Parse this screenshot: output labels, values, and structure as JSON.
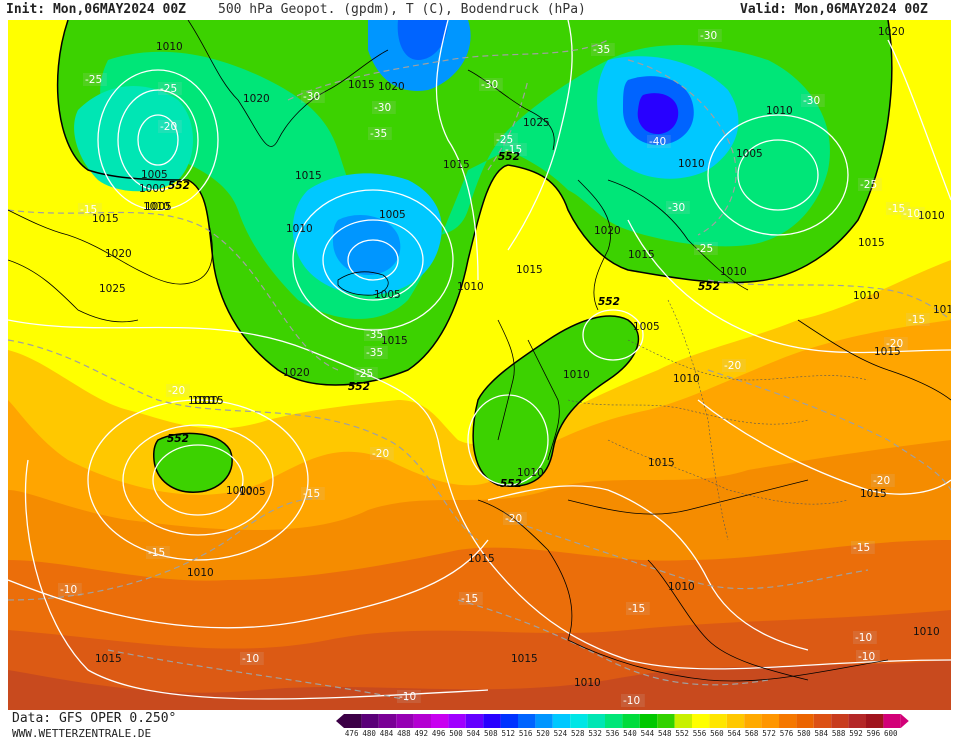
{
  "header": {
    "init": "Init: Mon,06MAY2024 00Z",
    "title": "500 hPa Geopot. (gpdm), T (C), Bodendruck (hPa)",
    "valid": "Valid: Mon,06MAY2024 00Z"
  },
  "footer": {
    "data_source": "Data: GFS OPER 0.250°",
    "site": "WWW.WETTERZENTRALE.DE"
  },
  "legend": {
    "values": [
      "476",
      "480",
      "484",
      "488",
      "492",
      "496",
      "500",
      "504",
      "508",
      "512",
      "516",
      "520",
      "524",
      "528",
      "532",
      "536",
      "540",
      "544",
      "548",
      "552",
      "556",
      "560",
      "564",
      "568",
      "572",
      "576",
      "580",
      "584",
      "588",
      "592",
      "596",
      "600"
    ],
    "colors": [
      "#3c0046",
      "#5a0078",
      "#7a0096",
      "#9600b4",
      "#b400d2",
      "#c800f0",
      "#a000ff",
      "#6400ff",
      "#2800ff",
      "#0032ff",
      "#0064ff",
      "#0096ff",
      "#00c8ff",
      "#00e6e6",
      "#00e6b4",
      "#00e678",
      "#00dc3c",
      "#00c800",
      "#32d200",
      "#c8f000",
      "#ffff00",
      "#ffe600",
      "#ffc800",
      "#ffaa00",
      "#ff9600",
      "#f57800",
      "#eb6400",
      "#dc5014",
      "#c83c1e",
      "#b42828",
      "#a0141e",
      "#d20078"
    ]
  },
  "map": {
    "isobar_labels": [
      {
        "text": "1010"
      },
      {
        "text": "1020"
      },
      {
        "text": "1015"
      },
      {
        "text": "1020"
      },
      {
        "text": "1025"
      },
      {
        "text": "1010"
      },
      {
        "text": "1020"
      },
      {
        "text": "1005"
      },
      {
        "text": "1010"
      },
      {
        "text": "1005"
      },
      {
        "text": "1000"
      },
      {
        "text": "1005"
      },
      {
        "text": "1010"
      },
      {
        "text": "1015"
      },
      {
        "text": "1020"
      },
      {
        "text": "1025"
      },
      {
        "text": "1015"
      },
      {
        "text": "1015"
      },
      {
        "text": "1010"
      },
      {
        "text": "1005"
      },
      {
        "text": "1005"
      },
      {
        "text": "1010"
      },
      {
        "text": "1015"
      },
      {
        "text": "1020"
      },
      {
        "text": "1010"
      },
      {
        "text": "1020"
      },
      {
        "text": "1015"
      },
      {
        "text": "1010"
      },
      {
        "text": "1005"
      },
      {
        "text": "1015"
      },
      {
        "text": "1010"
      },
      {
        "text": "1010"
      },
      {
        "text": "1015"
      },
      {
        "text": "1010"
      },
      {
        "text": "1005"
      },
      {
        "text": "1000"
      },
      {
        "text": "1010"
      },
      {
        "text": "1015"
      },
      {
        "text": "1010"
      },
      {
        "text": "1015"
      },
      {
        "text": "1015"
      },
      {
        "text": "1015"
      },
      {
        "text": "1010"
      },
      {
        "text": "1015"
      },
      {
        "text": "1010"
      },
      {
        "text": "1010"
      },
      {
        "text": "1015"
      },
      {
        "text": "1010"
      },
      {
        "text": "1010"
      },
      {
        "text": "1010"
      },
      {
        "text": "1015"
      }
    ],
    "temp_labels": [
      {
        "text": "-25"
      },
      {
        "text": "-25"
      },
      {
        "text": "-20"
      },
      {
        "text": "-15"
      },
      {
        "text": "-30"
      },
      {
        "text": "-30"
      },
      {
        "text": "-35"
      },
      {
        "text": "-30"
      },
      {
        "text": "-25"
      },
      {
        "text": "-35"
      },
      {
        "text": "-30"
      },
      {
        "text": "-40"
      },
      {
        "text": "-30"
      },
      {
        "text": "-25"
      },
      {
        "text": "-30"
      },
      {
        "text": "-25"
      },
      {
        "text": "-15"
      },
      {
        "text": "-35"
      },
      {
        "text": "-35"
      },
      {
        "text": "-25"
      },
      {
        "text": "-20"
      },
      {
        "text": "-20"
      },
      {
        "text": "-15"
      },
      {
        "text": "-20"
      },
      {
        "text": "-20"
      },
      {
        "text": "-20"
      },
      {
        "text": "-20"
      },
      {
        "text": "-15"
      },
      {
        "text": "-10"
      },
      {
        "text": "-15"
      },
      {
        "text": "-15"
      },
      {
        "text": "-10"
      },
      {
        "text": "-10"
      },
      {
        "text": "-10"
      },
      {
        "text": "-10"
      },
      {
        "text": "-15"
      },
      {
        "text": "-10"
      },
      {
        "text": "-15"
      },
      {
        "text": "-15"
      },
      {
        "text": "-10"
      }
    ],
    "geopot_labels": [
      {
        "text": "552"
      },
      {
        "text": "552"
      },
      {
        "text": "552"
      },
      {
        "text": "552"
      },
      {
        "text": "552"
      },
      {
        "text": "552"
      },
      {
        "text": "552"
      }
    ]
  }
}
